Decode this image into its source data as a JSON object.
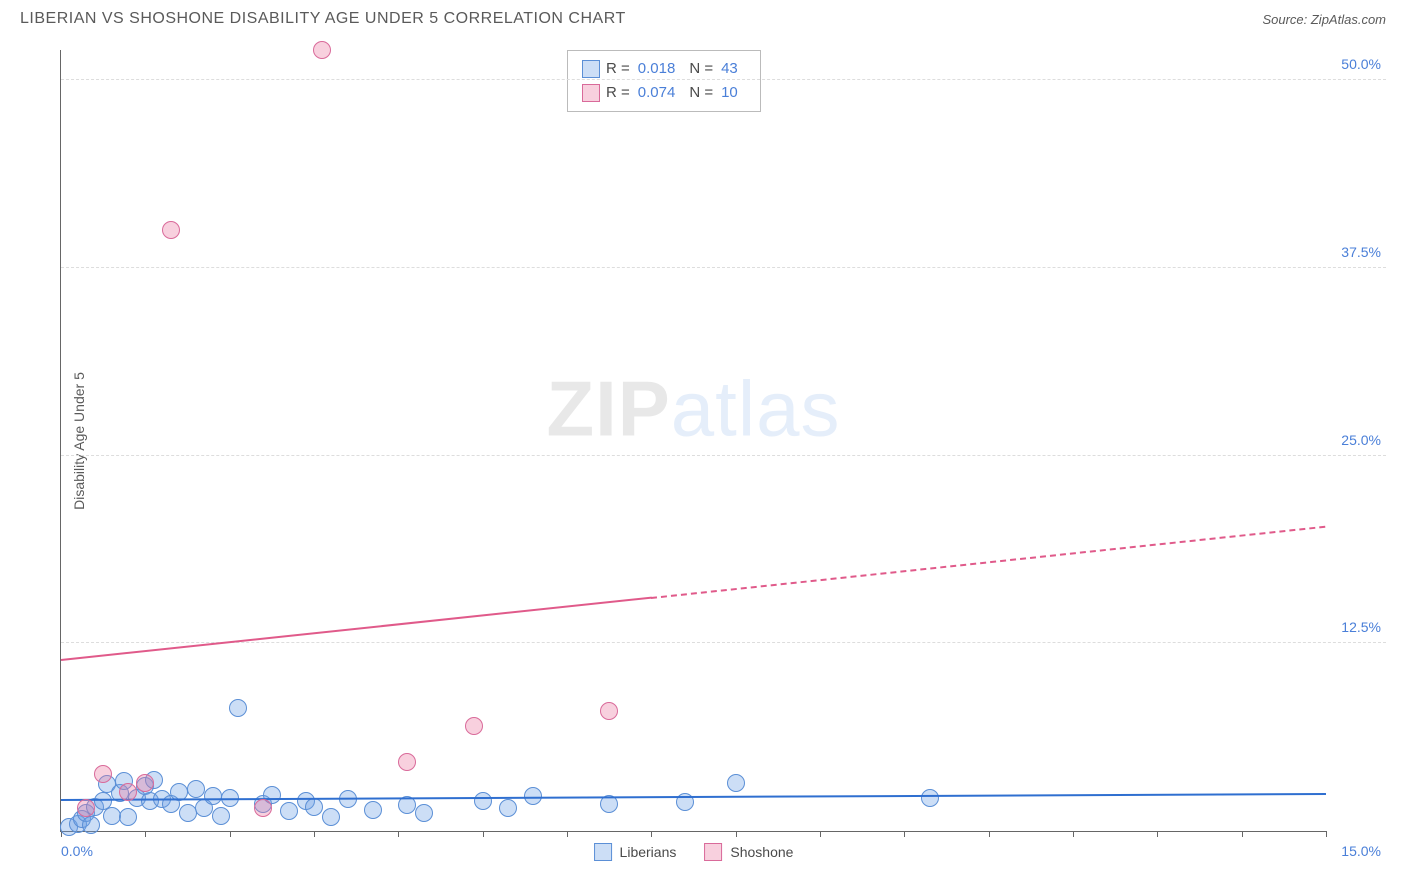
{
  "title": "LIBERIAN VS SHOSHONE DISABILITY AGE UNDER 5 CORRELATION CHART",
  "source_label": "Source: ZipAtlas.com",
  "ylabel": "Disability Age Under 5",
  "chart": {
    "type": "scatter",
    "xlim": [
      0,
      15
    ],
    "ylim": [
      0,
      52
    ],
    "x_tick_labels": {
      "left": "0.0%",
      "right": "15.0%"
    },
    "y_ticks": [
      {
        "v": 12.5,
        "label": "12.5%"
      },
      {
        "v": 25.0,
        "label": "25.0%"
      },
      {
        "v": 37.5,
        "label": "37.5%"
      },
      {
        "v": 50.0,
        "label": "50.0%"
      }
    ],
    "x_minor_ticks": [
      0,
      1,
      2,
      3,
      4,
      5,
      6,
      7,
      8,
      9,
      10,
      11,
      12,
      13,
      14,
      15
    ],
    "background_color": "#ffffff",
    "grid_color": "#dddddd",
    "point_radius": 9,
    "series": [
      {
        "name": "Liberians",
        "fill": "rgba(110,160,230,0.35)",
        "stroke": "#5b8fd6",
        "trend": {
          "color": "#2f6fd0",
          "y_at_x0": 2.0,
          "y_at_xmax": 2.4,
          "solid_until_x": 15
        },
        "points": [
          [
            0.1,
            0.3
          ],
          [
            0.2,
            0.5
          ],
          [
            0.25,
            0.8
          ],
          [
            0.3,
            1.2
          ],
          [
            0.35,
            0.4
          ],
          [
            0.4,
            1.6
          ],
          [
            0.5,
            2.0
          ],
          [
            0.55,
            3.1
          ],
          [
            0.6,
            1.0
          ],
          [
            0.7,
            2.5
          ],
          [
            0.75,
            3.3
          ],
          [
            0.8,
            0.9
          ],
          [
            0.9,
            2.2
          ],
          [
            1.0,
            3.0
          ],
          [
            1.05,
            2.0
          ],
          [
            1.1,
            3.4
          ],
          [
            1.2,
            2.1
          ],
          [
            1.3,
            1.8
          ],
          [
            1.4,
            2.6
          ],
          [
            1.5,
            1.2
          ],
          [
            1.6,
            2.8
          ],
          [
            1.7,
            1.5
          ],
          [
            1.8,
            2.3
          ],
          [
            1.9,
            1.0
          ],
          [
            2.0,
            2.2
          ],
          [
            2.1,
            8.2
          ],
          [
            2.4,
            1.8
          ],
          [
            2.5,
            2.4
          ],
          [
            2.7,
            1.3
          ],
          [
            2.9,
            2.0
          ],
          [
            3.0,
            1.6
          ],
          [
            3.2,
            0.9
          ],
          [
            3.4,
            2.1
          ],
          [
            3.7,
            1.4
          ],
          [
            4.1,
            1.7
          ],
          [
            4.3,
            1.2
          ],
          [
            5.0,
            2.0
          ],
          [
            5.3,
            1.5
          ],
          [
            5.6,
            2.3
          ],
          [
            6.5,
            1.8
          ],
          [
            7.4,
            1.9
          ],
          [
            8.0,
            3.2
          ],
          [
            10.3,
            2.2
          ]
        ],
        "R": "0.018",
        "N": "43"
      },
      {
        "name": "Shoshone",
        "fill": "rgba(235,120,160,0.35)",
        "stroke": "#d96a9a",
        "trend": {
          "color": "#e05a8a",
          "y_at_x0": 11.3,
          "y_at_xmax": 20.2,
          "solid_until_x": 7.0
        },
        "points": [
          [
            0.3,
            1.5
          ],
          [
            0.5,
            3.8
          ],
          [
            0.8,
            2.6
          ],
          [
            1.0,
            3.2
          ],
          [
            1.3,
            40.0
          ],
          [
            2.4,
            1.5
          ],
          [
            3.1,
            52.0
          ],
          [
            4.1,
            4.6
          ],
          [
            4.9,
            7.0
          ],
          [
            6.5,
            8.0
          ]
        ],
        "R": "0.074",
        "N": "10"
      }
    ]
  },
  "legend_bottom": [
    "Liberians",
    "Shoshone"
  ],
  "watermark": {
    "zip": "ZIP",
    "atlas": "atlas"
  }
}
